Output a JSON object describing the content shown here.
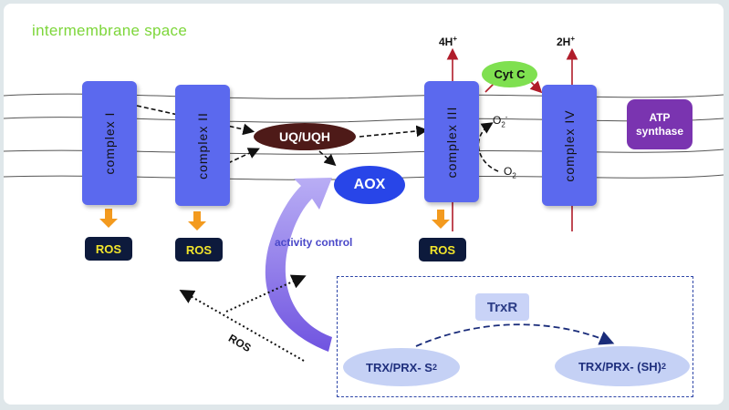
{
  "labels": {
    "intermembrane": "intermembrane space",
    "complex_1": "complex  I",
    "complex_2": "complex  II",
    "complex_3": "complex  III",
    "complex_4": "complex  IV",
    "ros": "ROS",
    "uq": "UQ/UQH",
    "aox": "AOX",
    "cyt_c": "Cyt C",
    "h_left": "4H",
    "h_right": "2H",
    "h_charge": "+",
    "atp_line1": "ATP",
    "atp_line2": "synthase",
    "o2": "O",
    "o2_sub": "2",
    "o2_charge": "-",
    "activity": "activity control",
    "ros_diag": "ROS",
    "trxr": "TrxR",
    "trx_ox": "TRX/PRX- S",
    "trx_ox_sub": "2",
    "trx_red": "TRX/PRX- (SH)",
    "trx_red_sub": "2"
  },
  "colors": {
    "complex": "#5b69ee",
    "ros_box": "#0d1a3c",
    "ros_text": "#f2e52b",
    "arrow_orange": "#f39a1e",
    "uq": "#4e1a18",
    "aox": "#2845e8",
    "cyt_c": "#7fe050",
    "atp": "#7a34b0",
    "title_green": "#7dd63a"
  }
}
